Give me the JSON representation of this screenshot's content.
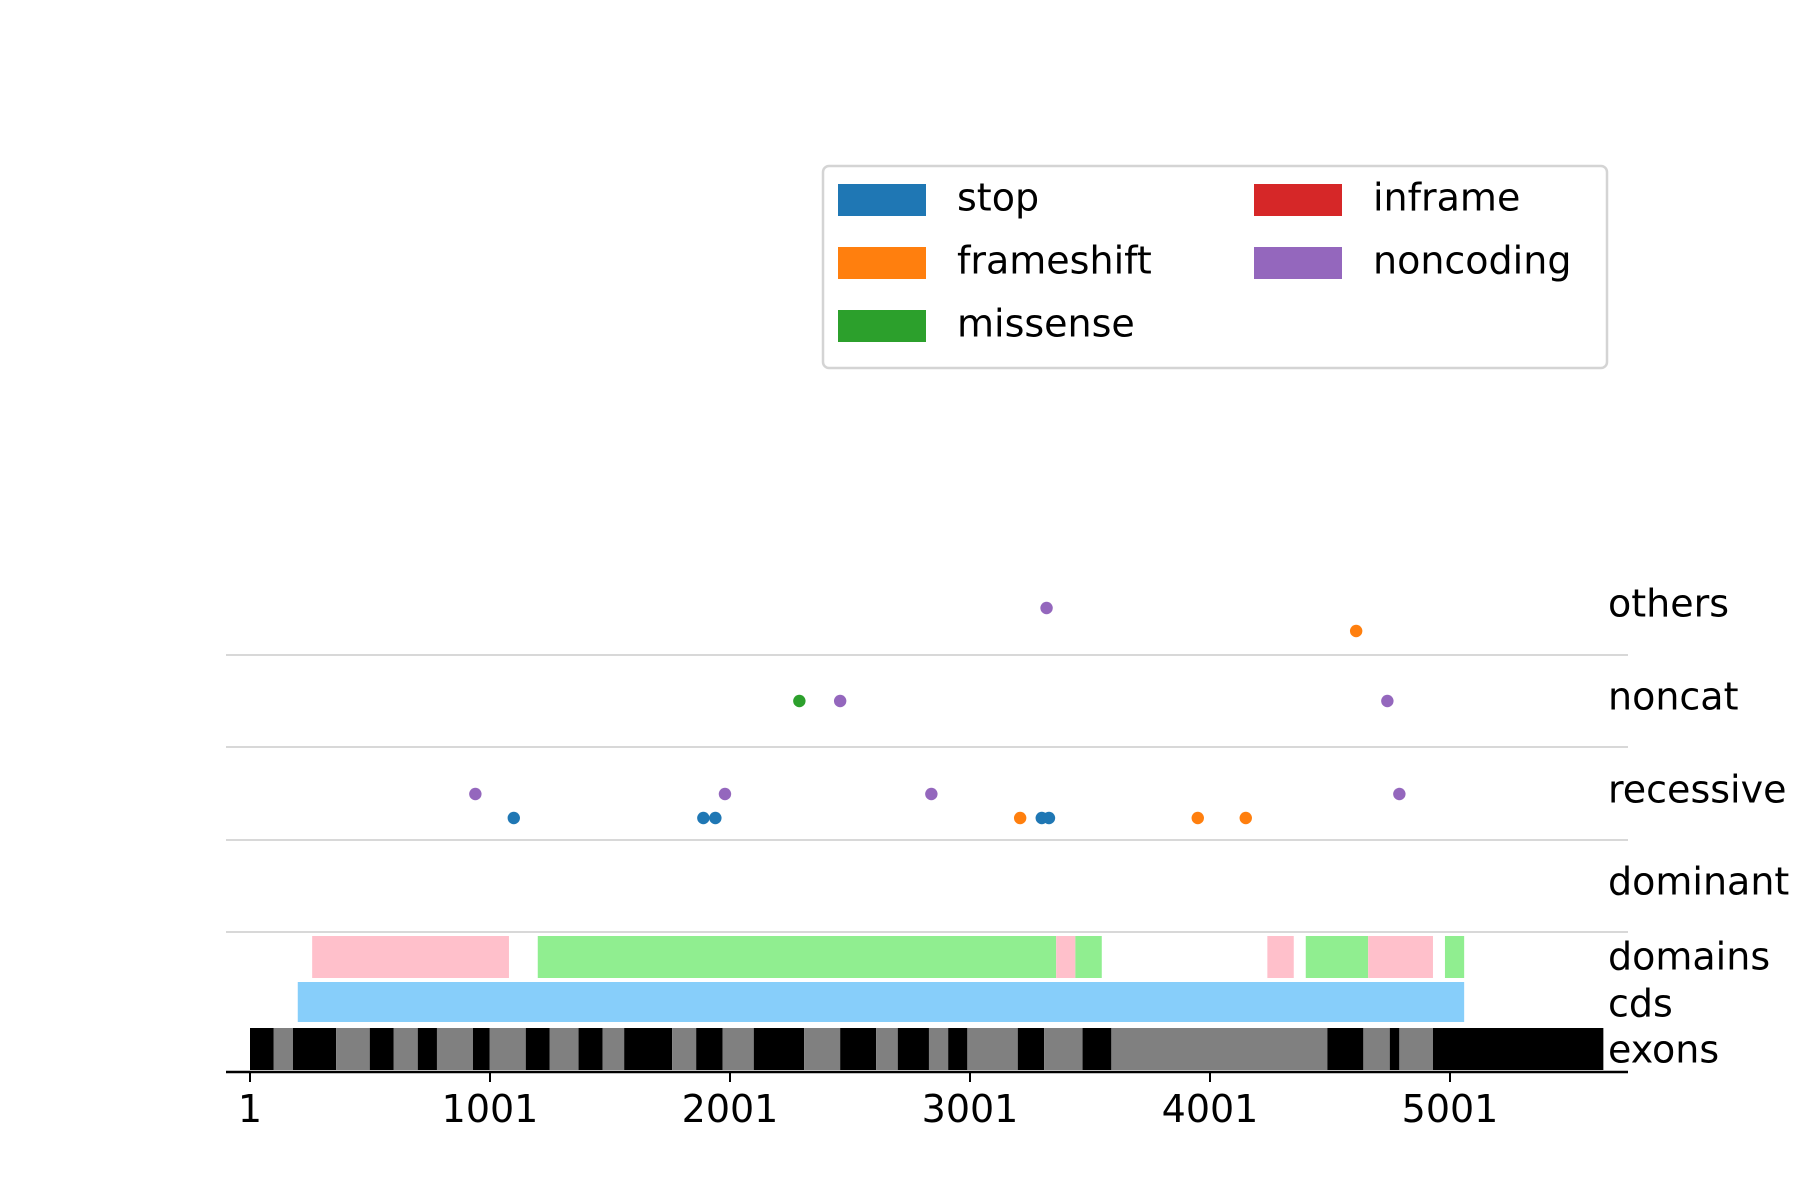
{
  "chart_data": {
    "type": "scatter",
    "xlim": [
      1,
      5700
    ],
    "grid": false,
    "legend_placement": "top-right",
    "xticks": [
      1,
      1001,
      2001,
      3001,
      4001,
      5001
    ],
    "tick_labels": [
      "1",
      "1001",
      "2001",
      "3001",
      "4001",
      "5001"
    ],
    "tracks": [
      "others",
      "noncat",
      "recessive",
      "dominant",
      "domains",
      "cds",
      "exons"
    ],
    "legend": [
      {
        "label": "stop",
        "color": "#1f77b4"
      },
      {
        "label": "frameshift",
        "color": "#ff7f0e"
      },
      {
        "label": "missense",
        "color": "#2ca02c"
      },
      {
        "label": "inframe",
        "color": "#d62728"
      },
      {
        "label": "noncoding",
        "color": "#9467bd"
      }
    ],
    "variants": [
      {
        "track": "others",
        "x": 3320,
        "type": "noncoding",
        "row": 0
      },
      {
        "track": "others",
        "x": 4610,
        "type": "frameshift",
        "row": 1
      },
      {
        "track": "noncat",
        "x": 2290,
        "type": "missense",
        "row": 0
      },
      {
        "track": "noncat",
        "x": 2460,
        "type": "noncoding",
        "row": 0
      },
      {
        "track": "noncat",
        "x": 4740,
        "type": "noncoding",
        "row": 0
      },
      {
        "track": "recessive",
        "x": 940,
        "type": "noncoding",
        "row": 0
      },
      {
        "track": "recessive",
        "x": 1100,
        "type": "stop",
        "row": 1
      },
      {
        "track": "recessive",
        "x": 1890,
        "type": "stop",
        "row": 1
      },
      {
        "track": "recessive",
        "x": 1940,
        "type": "stop",
        "row": 1
      },
      {
        "track": "recessive",
        "x": 1980,
        "type": "noncoding",
        "row": 0
      },
      {
        "track": "recessive",
        "x": 2840,
        "type": "noncoding",
        "row": 0
      },
      {
        "track": "recessive",
        "x": 3210,
        "type": "frameshift",
        "row": 1
      },
      {
        "track": "recessive",
        "x": 3300,
        "type": "stop",
        "row": 1
      },
      {
        "track": "recessive",
        "x": 3330,
        "type": "stop",
        "row": 1
      },
      {
        "track": "recessive",
        "x": 3950,
        "type": "frameshift",
        "row": 1
      },
      {
        "track": "recessive",
        "x": 4150,
        "type": "frameshift",
        "row": 1
      },
      {
        "track": "recessive",
        "x": 4790,
        "type": "noncoding",
        "row": 0
      }
    ],
    "domains": [
      {
        "start": 260,
        "end": 1080,
        "color": "#ffc0cb"
      },
      {
        "start": 1200,
        "end": 3360,
        "color": "#90ee90"
      },
      {
        "start": 3360,
        "end": 3440,
        "color": "#ffc0cb"
      },
      {
        "start": 3440,
        "end": 3550,
        "color": "#90ee90"
      },
      {
        "start": 4240,
        "end": 4350,
        "color": "#ffc0cb"
      },
      {
        "start": 4400,
        "end": 4660,
        "color": "#90ee90"
      },
      {
        "start": 4660,
        "end": 4930,
        "color": "#ffc0cb"
      },
      {
        "start": 4980,
        "end": 5060,
        "color": "#90ee90"
      }
    ],
    "cds": {
      "start": 200,
      "end": 5060,
      "color": "#87cefa"
    },
    "exons": [
      {
        "start": 1,
        "end": 100,
        "color": "#000000"
      },
      {
        "start": 100,
        "end": 180,
        "color": "#808080"
      },
      {
        "start": 180,
        "end": 360,
        "color": "#000000"
      },
      {
        "start": 360,
        "end": 500,
        "color": "#808080"
      },
      {
        "start": 500,
        "end": 600,
        "color": "#000000"
      },
      {
        "start": 600,
        "end": 700,
        "color": "#808080"
      },
      {
        "start": 700,
        "end": 780,
        "color": "#000000"
      },
      {
        "start": 780,
        "end": 930,
        "color": "#808080"
      },
      {
        "start": 930,
        "end": 1000,
        "color": "#000000"
      },
      {
        "start": 1000,
        "end": 1150,
        "color": "#808080"
      },
      {
        "start": 1150,
        "end": 1250,
        "color": "#000000"
      },
      {
        "start": 1250,
        "end": 1370,
        "color": "#808080"
      },
      {
        "start": 1370,
        "end": 1470,
        "color": "#000000"
      },
      {
        "start": 1470,
        "end": 1560,
        "color": "#808080"
      },
      {
        "start": 1560,
        "end": 1760,
        "color": "#000000"
      },
      {
        "start": 1760,
        "end": 1860,
        "color": "#808080"
      },
      {
        "start": 1860,
        "end": 1970,
        "color": "#000000"
      },
      {
        "start": 1970,
        "end": 2100,
        "color": "#808080"
      },
      {
        "start": 2100,
        "end": 2310,
        "color": "#000000"
      },
      {
        "start": 2310,
        "end": 2460,
        "color": "#808080"
      },
      {
        "start": 2460,
        "end": 2610,
        "color": "#000000"
      },
      {
        "start": 2610,
        "end": 2700,
        "color": "#808080"
      },
      {
        "start": 2700,
        "end": 2830,
        "color": "#000000"
      },
      {
        "start": 2830,
        "end": 2910,
        "color": "#808080"
      },
      {
        "start": 2910,
        "end": 2990,
        "color": "#000000"
      },
      {
        "start": 2990,
        "end": 3200,
        "color": "#808080"
      },
      {
        "start": 3200,
        "end": 3310,
        "color": "#000000"
      },
      {
        "start": 3310,
        "end": 3470,
        "color": "#808080"
      },
      {
        "start": 3470,
        "end": 3590,
        "color": "#000000"
      },
      {
        "start": 3590,
        "end": 4490,
        "color": "#808080"
      },
      {
        "start": 4490,
        "end": 4640,
        "color": "#000000"
      },
      {
        "start": 4640,
        "end": 4750,
        "color": "#808080"
      },
      {
        "start": 4750,
        "end": 4790,
        "color": "#000000"
      },
      {
        "start": 4790,
        "end": 4930,
        "color": "#808080"
      },
      {
        "start": 4930,
        "end": 5640,
        "color": "#000000"
      }
    ]
  }
}
